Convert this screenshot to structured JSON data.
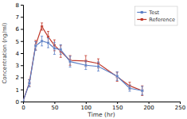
{
  "chart_data": {
    "type": "line",
    "x": [
      0,
      10,
      20,
      30,
      40,
      50,
      60,
      75,
      100,
      120,
      150,
      170,
      190
    ],
    "series": [
      {
        "name": "Test",
        "color": "#5b7fc5",
        "marker": "square",
        "values": [
          0.05,
          1.5,
          4.6,
          5.0,
          4.85,
          4.4,
          4.3,
          3.3,
          3.0,
          2.9,
          2.1,
          1.1,
          0.9
        ],
        "errors": [
          0.05,
          0.3,
          0.35,
          0.4,
          0.4,
          0.5,
          0.4,
          0.45,
          0.35,
          0.38,
          0.35,
          0.25,
          0.35
        ]
      },
      {
        "name": "Reference",
        "color": "#c0392b",
        "marker": "square",
        "values": [
          0.05,
          1.55,
          4.65,
          6.2,
          5.35,
          4.65,
          4.15,
          3.4,
          3.35,
          3.15,
          2.05,
          1.3,
          0.9
        ],
        "errors": [
          0.05,
          0.28,
          0.4,
          0.3,
          0.45,
          0.45,
          0.5,
          0.4,
          0.45,
          0.38,
          0.38,
          0.3,
          0.4
        ]
      }
    ],
    "xlabel": "Time (hr)",
    "ylabel": "Concentration (ng/ml)",
    "xlim": [
      0,
      250
    ],
    "ylim": [
      0,
      8
    ],
    "xticks": [
      0,
      50,
      100,
      150,
      200,
      250
    ],
    "yticks": [
      0,
      1,
      2,
      3,
      4,
      5,
      6,
      7,
      8
    ],
    "legend": "upper right",
    "grid": false
  }
}
